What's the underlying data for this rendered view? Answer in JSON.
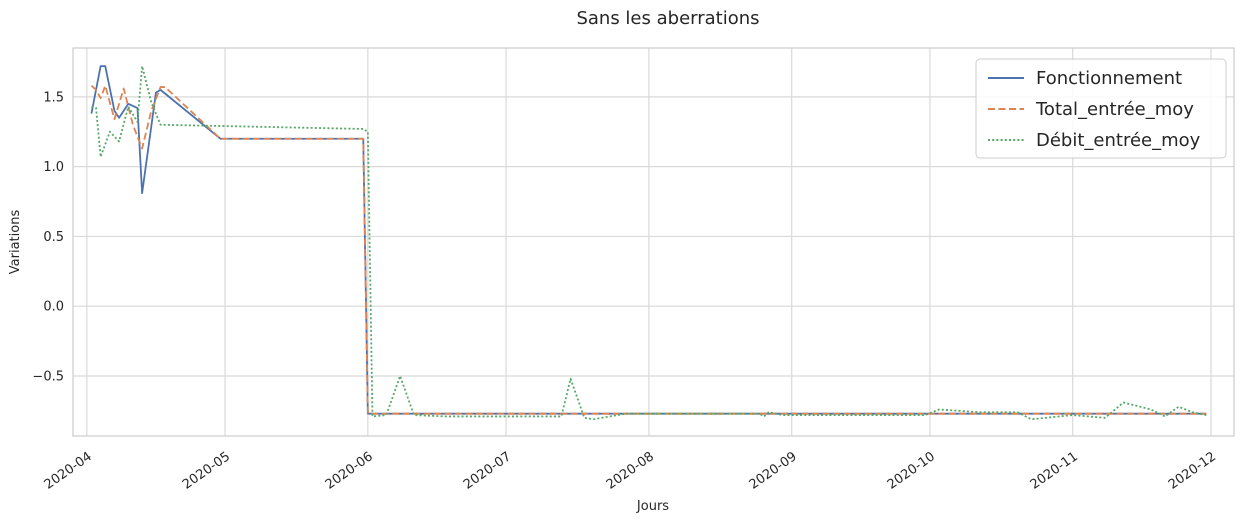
{
  "chart_data": {
    "type": "line",
    "title": "Sans les aberrations",
    "xlabel": "Jours",
    "ylabel": "Variations",
    "x_type": "date",
    "xlim": [
      "2020-03-29",
      "2020-12-06"
    ],
    "ylim": [
      -0.93,
      1.85
    ],
    "grid": true,
    "legend_position": "top-right",
    "x_ticks": [
      {
        "date": "2020-04-01",
        "label": "2020-04"
      },
      {
        "date": "2020-05-01",
        "label": "2020-05"
      },
      {
        "date": "2020-06-01",
        "label": "2020-06"
      },
      {
        "date": "2020-07-01",
        "label": "2020-07"
      },
      {
        "date": "2020-08-01",
        "label": "2020-08"
      },
      {
        "date": "2020-09-01",
        "label": "2020-09"
      },
      {
        "date": "2020-10-01",
        "label": "2020-10"
      },
      {
        "date": "2020-11-01",
        "label": "2020-11"
      },
      {
        "date": "2020-12-01",
        "label": "2020-12"
      }
    ],
    "y_ticks": [
      {
        "value": 1.5,
        "label": "1.5"
      },
      {
        "value": 1.0,
        "label": "1.0"
      },
      {
        "value": 0.5,
        "label": "0.5"
      },
      {
        "value": 0.0,
        "label": "0.0"
      },
      {
        "value": -0.5,
        "label": "−0.5"
      }
    ],
    "series": [
      {
        "name": "Fonctionnement",
        "color": "#4c72b0",
        "dash": "solid",
        "points": [
          [
            "2020-04-02",
            1.38
          ],
          [
            "2020-04-04",
            1.72
          ],
          [
            "2020-04-05",
            1.72
          ],
          [
            "2020-04-07",
            1.4
          ],
          [
            "2020-04-08",
            1.35
          ],
          [
            "2020-04-10",
            1.45
          ],
          [
            "2020-04-12",
            1.42
          ],
          [
            "2020-04-13",
            0.81
          ],
          [
            "2020-04-16",
            1.53
          ],
          [
            "2020-04-17",
            1.55
          ],
          [
            "2020-04-30",
            1.2
          ],
          [
            "2020-05-31",
            1.2
          ],
          [
            "2020-06-01",
            -0.77
          ],
          [
            "2020-11-30",
            -0.77
          ]
        ]
      },
      {
        "name": "Total_entrée_moy",
        "color": "#dd8452",
        "dash": "dashed",
        "points": [
          [
            "2020-04-02",
            1.58
          ],
          [
            "2020-04-03",
            1.55
          ],
          [
            "2020-04-04",
            1.49
          ],
          [
            "2020-04-05",
            1.58
          ],
          [
            "2020-04-07",
            1.34
          ],
          [
            "2020-04-09",
            1.56
          ],
          [
            "2020-04-11",
            1.3
          ],
          [
            "2020-04-13",
            1.13
          ],
          [
            "2020-04-15",
            1.4
          ],
          [
            "2020-04-17",
            1.57
          ],
          [
            "2020-04-18",
            1.57
          ],
          [
            "2020-04-30",
            1.2
          ],
          [
            "2020-05-31",
            1.2
          ],
          [
            "2020-06-01",
            -0.77
          ],
          [
            "2020-11-30",
            -0.77
          ]
        ]
      },
      {
        "name": "Débit_entrée_moy",
        "color": "#55a868",
        "dash": "dotted",
        "points": [
          [
            "2020-04-02",
            1.43
          ],
          [
            "2020-04-03",
            1.42
          ],
          [
            "2020-04-04",
            1.07
          ],
          [
            "2020-04-06",
            1.25
          ],
          [
            "2020-04-08",
            1.18
          ],
          [
            "2020-04-10",
            1.43
          ],
          [
            "2020-04-12",
            1.32
          ],
          [
            "2020-04-13",
            1.72
          ],
          [
            "2020-04-15",
            1.46
          ],
          [
            "2020-04-17",
            1.3
          ],
          [
            "2020-05-31",
            1.27
          ],
          [
            "2020-06-01",
            1.25
          ],
          [
            "2020-06-02",
            -0.79
          ],
          [
            "2020-06-05",
            -0.78
          ],
          [
            "2020-06-08",
            -0.5
          ],
          [
            "2020-06-11",
            -0.78
          ],
          [
            "2020-06-18",
            -0.79
          ],
          [
            "2020-07-13",
            -0.79
          ],
          [
            "2020-07-15",
            -0.52
          ],
          [
            "2020-07-18",
            -0.8
          ],
          [
            "2020-07-20",
            -0.81
          ],
          [
            "2020-07-27",
            -0.77
          ],
          [
            "2020-08-25",
            -0.77
          ],
          [
            "2020-08-26",
            -0.79
          ],
          [
            "2020-08-27",
            -0.76
          ],
          [
            "2020-08-30",
            -0.78
          ],
          [
            "2020-09-30",
            -0.78
          ],
          [
            "2020-10-03",
            -0.74
          ],
          [
            "2020-10-12",
            -0.76
          ],
          [
            "2020-10-20",
            -0.76
          ],
          [
            "2020-10-23",
            -0.81
          ],
          [
            "2020-11-01",
            -0.78
          ],
          [
            "2020-11-08",
            -0.8
          ],
          [
            "2020-11-12",
            -0.69
          ],
          [
            "2020-11-18",
            -0.74
          ],
          [
            "2020-11-21",
            -0.79
          ],
          [
            "2020-11-24",
            -0.72
          ],
          [
            "2020-11-27",
            -0.76
          ],
          [
            "2020-11-30",
            -0.78
          ]
        ]
      }
    ]
  }
}
